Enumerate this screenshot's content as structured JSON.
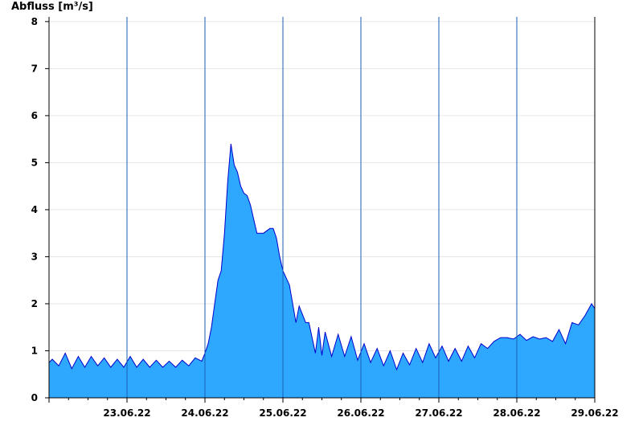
{
  "chart_data": {
    "type": "area",
    "ylabel": "Abfluss [m³/s]",
    "ylim": [
      0,
      8.1
    ],
    "yticks": [
      0,
      1,
      2,
      3,
      4,
      5,
      6,
      7,
      8
    ],
    "xlim": [
      "22.06.22 12:00",
      "29.06.22 12:00"
    ],
    "xtick_labels": [
      "23.06.22",
      "24.06.22",
      "25.06.22",
      "26.06.22",
      "27.06.22",
      "28.06.22",
      "29.06.22"
    ],
    "day_separators": [
      "23.06.22 12:00",
      "24.06.22 12:00",
      "25.06.22 12:00",
      "26.06.22 12:00",
      "27.06.22 12:00",
      "28.06.22 12:00"
    ],
    "grid": true,
    "fill_color": "#2ea8ff",
    "line_color": "#0000cc",
    "series": [
      {
        "x": [
          "22.06.22 12:00",
          "22.06.22 13:00",
          "22.06.22 15:00",
          "22.06.22 17:00",
          "22.06.22 19:00",
          "22.06.22 21:00",
          "22.06.22 23:00",
          "23.06.22 01:00",
          "23.06.22 03:00",
          "23.06.22 05:00",
          "23.06.22 07:00",
          "23.06.22 09:00",
          "23.06.22 11:00",
          "23.06.22 13:00",
          "23.06.22 15:00",
          "23.06.22 17:00",
          "23.06.22 19:00",
          "23.06.22 21:00",
          "23.06.22 23:00",
          "24.06.22 01:00",
          "24.06.22 03:00",
          "24.06.22 05:00",
          "24.06.22 07:00",
          "24.06.22 09:00",
          "24.06.22 11:00",
          "24.06.22 12:00",
          "24.06.22 13:00",
          "24.06.22 14:00",
          "24.06.22 15:00",
          "24.06.22 16:00",
          "24.06.22 17:00",
          "24.06.22 18:00",
          "24.06.22 19:00",
          "24.06.22 20:00",
          "24.06.22 21:00",
          "24.06.22 22:00",
          "24.06.22 23:00",
          "25.06.22 00:00",
          "25.06.22 01:00",
          "25.06.22 02:00",
          "25.06.22 03:00",
          "25.06.22 04:00",
          "25.06.22 06:00",
          "25.06.22 08:00",
          "25.06.22 09:00",
          "25.06.22 10:00",
          "25.06.22 11:00",
          "25.06.22 12:00",
          "25.06.22 14:00",
          "25.06.22 16:00",
          "25.06.22 17:00",
          "25.06.22 19:00",
          "25.06.22 20:00",
          "25.06.22 22:00",
          "25.06.22 23:00",
          "26.06.22 00:00",
          "26.06.22 01:00",
          "26.06.22 03:00",
          "26.06.22 05:00",
          "26.06.22 07:00",
          "26.06.22 09:00",
          "26.06.22 11:00",
          "26.06.22 13:00",
          "26.06.22 15:00",
          "26.06.22 17:00",
          "26.06.22 19:00",
          "26.06.22 21:00",
          "26.06.22 23:00",
          "27.06.22 01:00",
          "27.06.22 03:00",
          "27.06.22 05:00",
          "27.06.22 07:00",
          "27.06.22 09:00",
          "27.06.22 11:00",
          "27.06.22 13:00",
          "27.06.22 15:00",
          "27.06.22 17:00",
          "27.06.22 19:00",
          "27.06.22 21:00",
          "27.06.22 23:00",
          "28.06.22 01:00",
          "28.06.22 03:00",
          "28.06.22 05:00",
          "28.06.22 07:00",
          "28.06.22 09:00",
          "28.06.22 11:00",
          "28.06.22 13:00",
          "28.06.22 15:00",
          "28.06.22 17:00",
          "28.06.22 19:00",
          "28.06.22 21:00",
          "28.06.22 23:00",
          "29.06.22 01:00",
          "29.06.22 03:00",
          "29.06.22 05:00",
          "29.06.22 07:00",
          "29.06.22 09:00",
          "29.06.22 11:00",
          "29.06.22 12:00"
        ],
        "y": [
          0.75,
          0.82,
          0.68,
          0.95,
          0.62,
          0.88,
          0.65,
          0.88,
          0.68,
          0.85,
          0.65,
          0.82,
          0.65,
          0.88,
          0.65,
          0.82,
          0.65,
          0.8,
          0.65,
          0.78,
          0.65,
          0.8,
          0.68,
          0.85,
          0.78,
          0.95,
          1.15,
          1.5,
          2.0,
          2.5,
          2.7,
          3.5,
          4.6,
          5.4,
          4.95,
          4.8,
          4.5,
          4.35,
          4.3,
          4.1,
          3.8,
          3.5,
          3.5,
          3.6,
          3.6,
          3.4,
          3.0,
          2.7,
          2.4,
          1.6,
          1.95,
          1.6,
          1.6,
          0.95,
          1.5,
          0.9,
          1.4,
          0.88,
          1.35,
          0.88,
          1.3,
          0.8,
          1.15,
          0.75,
          1.05,
          0.68,
          1.0,
          0.6,
          0.95,
          0.7,
          1.05,
          0.75,
          1.15,
          0.85,
          1.1,
          0.78,
          1.05,
          0.78,
          1.1,
          0.85,
          1.15,
          1.05,
          1.2,
          1.28,
          1.28,
          1.25,
          1.35,
          1.22,
          1.3,
          1.25,
          1.28,
          1.2,
          1.45,
          1.15,
          1.6,
          1.55,
          1.75,
          2.0,
          1.9
        ]
      }
    ]
  }
}
